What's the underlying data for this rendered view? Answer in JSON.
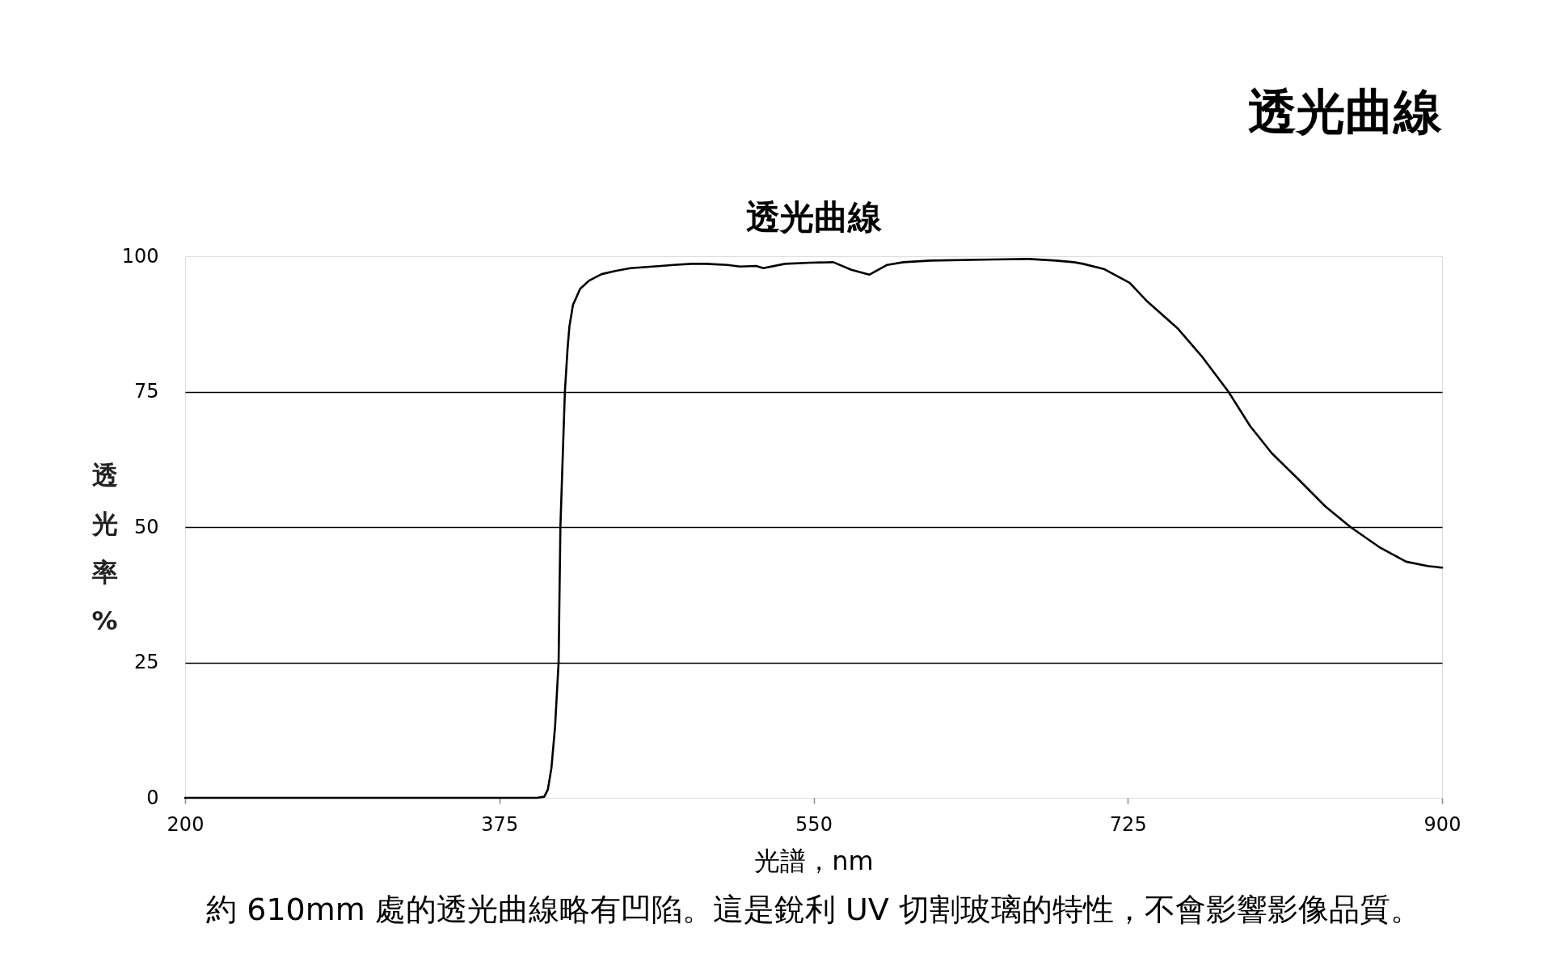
{
  "chart_data": {
    "type": "line",
    "title": "透光曲線",
    "subtitle": "透光曲線",
    "xlabel": "光譜，nm",
    "ylabel": "透光率%",
    "annotations": [
      "約 610mm 處的透光曲線略有凹陷。這是銳利 UV 切割玻璃的特性，不會影響影像品質。"
    ],
    "x": [
      200,
      300,
      396,
      400,
      402,
      404,
      406,
      408,
      409,
      410,
      411.5,
      413,
      414,
      416,
      418,
      420,
      425,
      432,
      440,
      448,
      465,
      472,
      482,
      490,
      502,
      509,
      518,
      522,
      534,
      548,
      561,
      571,
      581,
      591,
      600,
      615,
      650,
      670,
      685,
      695,
      700,
      712,
      726,
      736,
      753,
      766,
      781,
      793,
      805,
      820,
      835,
      849,
      865,
      880,
      892,
      900
    ],
    "values": [
      0,
      0,
      0,
      0.2,
      1.5,
      5.5,
      13,
      25,
      50,
      60,
      75,
      83,
      87,
      91,
      92.5,
      94,
      95.5,
      96.7,
      97.3,
      97.8,
      98.2,
      98.4,
      98.6,
      98.6,
      98.4,
      98.1,
      98.2,
      97.8,
      98.6,
      98.8,
      98.9,
      97.5,
      96.6,
      98.4,
      98.9,
      99.2,
      99.4,
      99.5,
      99.2,
      98.9,
      98.6,
      97.6,
      95.1,
      91.6,
      86.6,
      81.6,
      75,
      68.7,
      63.7,
      58.8,
      53.8,
      50,
      46.3,
      43.6,
      42.8,
      42.5
    ],
    "color": "#000000",
    "xlim": [
      200,
      900
    ],
    "ylim": [
      0,
      100
    ],
    "xticks": [
      200,
      375,
      550,
      725,
      900
    ],
    "yticks": [
      0,
      25,
      50,
      75,
      100
    ],
    "grid": "y"
  }
}
